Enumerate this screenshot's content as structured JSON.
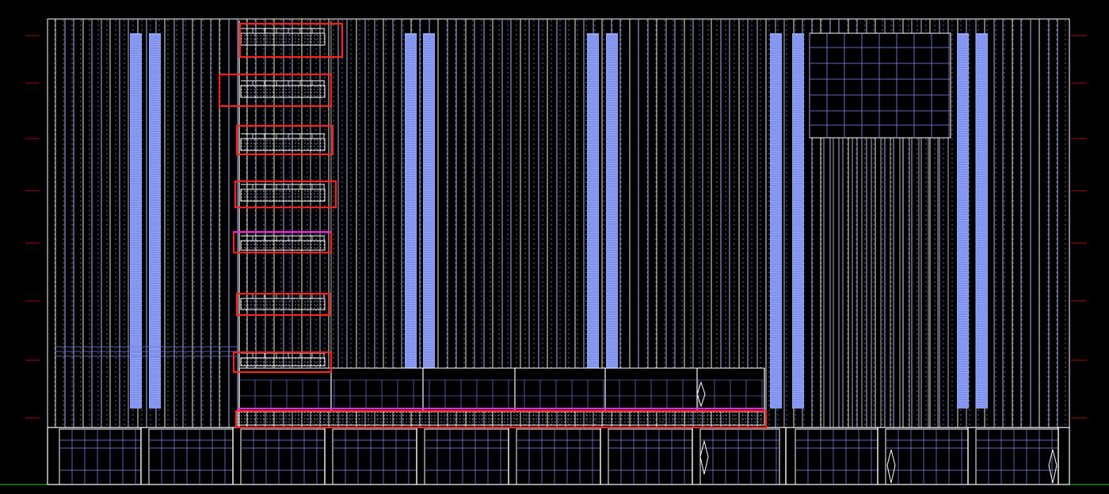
{
  "drawing": {
    "type": "cad-elevation",
    "background": "#000000",
    "line_colors": {
      "outline": "#ffffff",
      "glazing_grid": "#7f8cf0",
      "glazing_fill": "#8fa2f5",
      "highlight_box": "#ff2222",
      "magenta_line": "#ff22ff",
      "grid_marker": "#a01010",
      "ground_marker": "#22cc22",
      "dot_hatch": "#dddddd"
    },
    "floor_levels": 7,
    "highlight_boxes": 9
  }
}
